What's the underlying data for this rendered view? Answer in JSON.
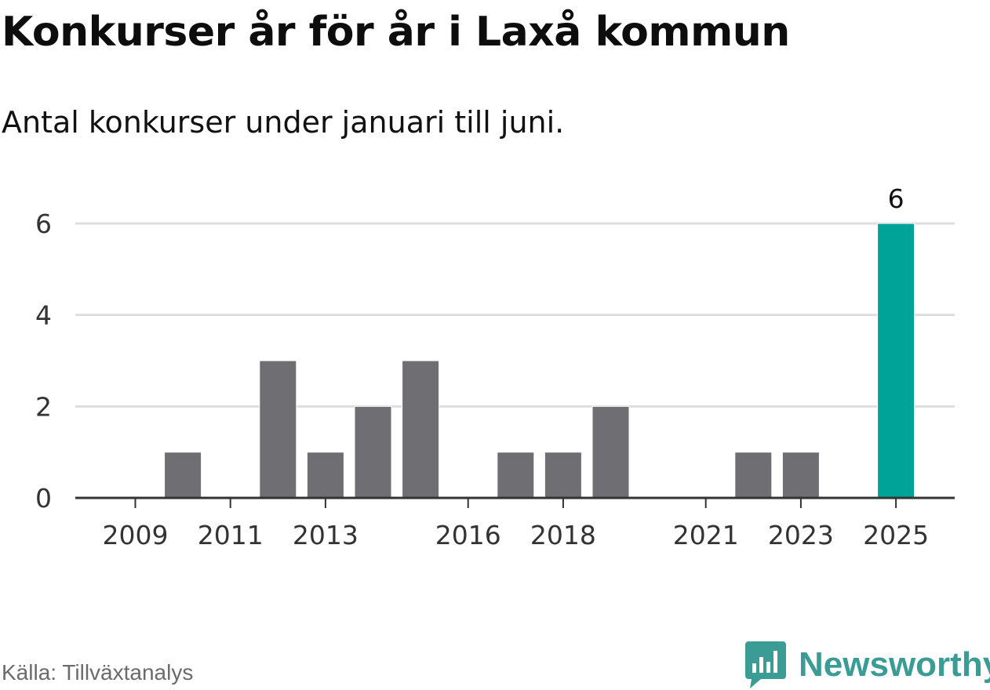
{
  "title": "Konkurser år för år i Laxå kommun",
  "subtitle": "Antal konkurser under januari till juni.",
  "source": "Källa: Tillväxtanalys",
  "brand": {
    "name": "Newsworthy",
    "icon": "newsworthy-logo-icon",
    "color": "#3a9c94"
  },
  "colors": {
    "bar": "#6f6e73",
    "highlight": "#00a398",
    "grid": "#dedede",
    "axis": "#333333"
  },
  "chart_data": {
    "type": "bar",
    "title": "Konkurser år för år i Laxå kommun",
    "subtitle": "Antal konkurser under januari till juni.",
    "xlabel": "",
    "ylabel": "",
    "x": [
      2009,
      2010,
      2011,
      2012,
      2013,
      2014,
      2015,
      2016,
      2017,
      2018,
      2019,
      2020,
      2021,
      2022,
      2023,
      2024,
      2025
    ],
    "values": [
      0,
      1,
      0,
      3,
      1,
      2,
      3,
      0,
      1,
      1,
      2,
      0,
      0,
      1,
      1,
      0,
      6
    ],
    "x_tick_labels": [
      "2009",
      "2011",
      "2013",
      "2016",
      "2018",
      "2021",
      "2023",
      "2025"
    ],
    "yticks": [
      0,
      2,
      4,
      6
    ],
    "ylim": [
      0,
      6
    ],
    "grid": true,
    "legend": "none",
    "highlight": {
      "x": 2025,
      "label": "6"
    }
  }
}
